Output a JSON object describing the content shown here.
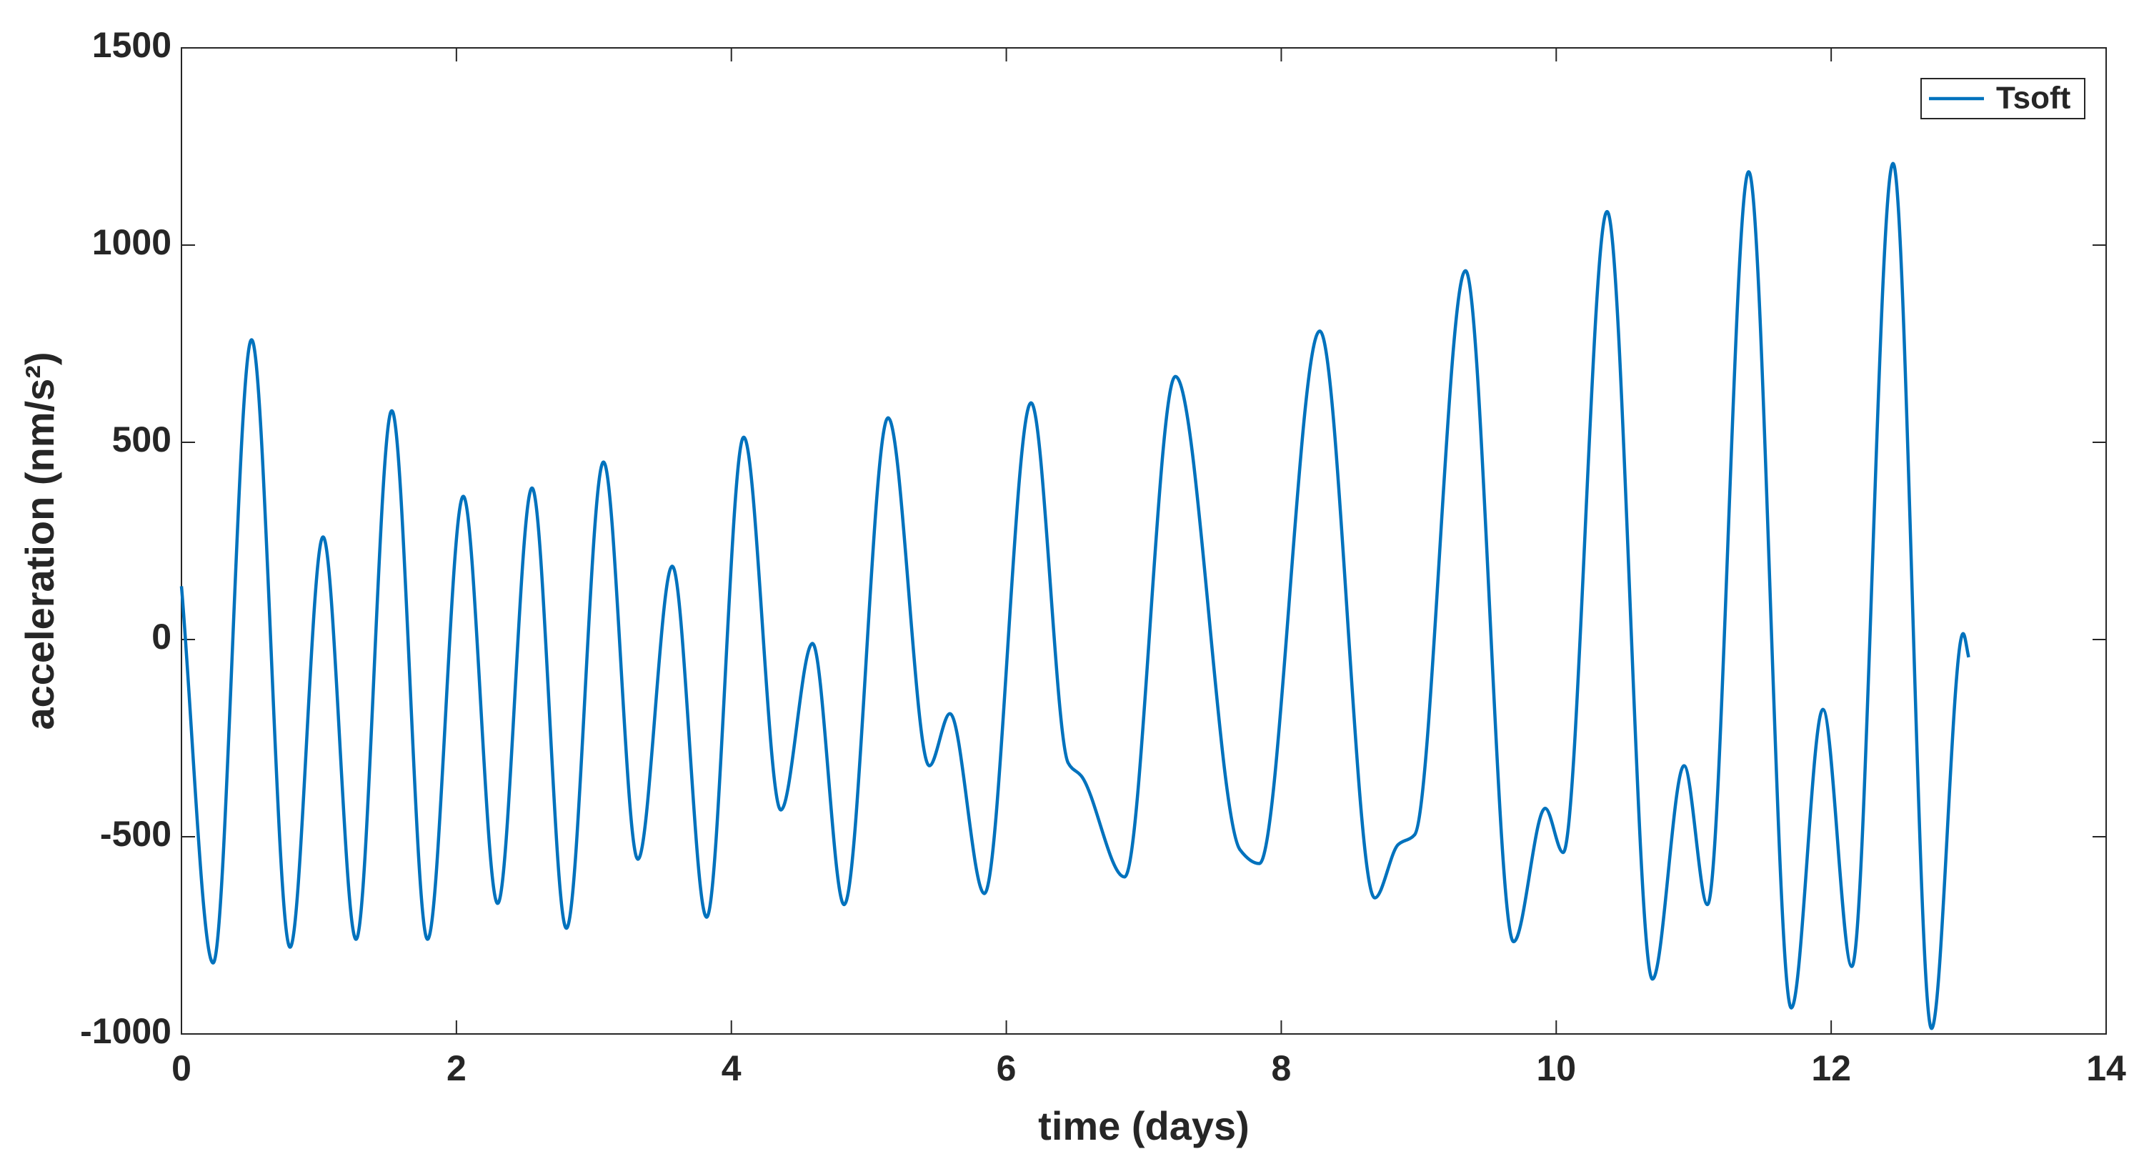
{
  "chart_data": {
    "type": "line",
    "xlabel": "time (days)",
    "ylabel": "acceleration (nm/s²)",
    "xlim": [
      0,
      14
    ],
    "xticks": [
      0,
      2,
      4,
      6,
      8,
      10,
      12,
      14
    ],
    "ylim": [
      -1000,
      1500
    ],
    "yticks": [
      -1000,
      -500,
      0,
      500,
      1000,
      1500
    ],
    "legend": "upper right",
    "series": [
      {
        "name": "Tsoft",
        "color": "#0072bd",
        "x": [
          0,
          0.23,
          0.51,
          0.79,
          1.03,
          1.27,
          1.53,
          1.79,
          2.05,
          2.3,
          2.55,
          2.8,
          3.07,
          3.32,
          3.57,
          3.82,
          4.09,
          4.36,
          4.59,
          4.82,
          5.14,
          5.44,
          5.59,
          5.84,
          6.18,
          6.45,
          6.55,
          6.86,
          7.23,
          7.7,
          7.84,
          8.28,
          8.68,
          8.85,
          8.97,
          9.34,
          9.69,
          9.92,
          10.05,
          10.37,
          10.7,
          10.93,
          11.1,
          11.4,
          11.71,
          11.94,
          12.15,
          12.45,
          12.73,
          12.96,
          13.0
        ],
        "values": [
          135,
          -820,
          760,
          -780,
          260,
          -760,
          580,
          -760,
          363,
          -669,
          384,
          -732,
          450,
          -557,
          186,
          -704,
          513,
          -432,
          -10,
          -672,
          562,
          -320,
          -188,
          -644,
          600,
          -313,
          -348,
          -602,
          667,
          -533,
          -568,
          782,
          -655,
          -520,
          -495,
          935,
          -766,
          -428,
          -540,
          1085,
          -861,
          -320,
          -672,
          1186,
          -934,
          -177,
          -829,
          1207,
          -986,
          15,
          -45
        ]
      }
    ]
  }
}
